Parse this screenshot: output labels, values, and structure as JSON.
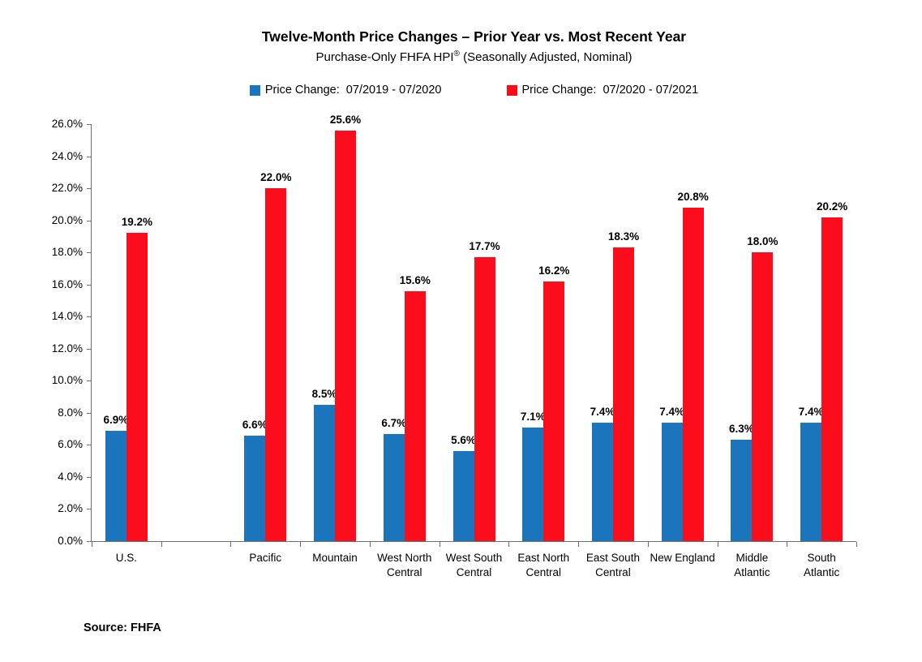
{
  "title": "Twelve-Month Price Changes – Prior Year vs. Most Recent Year",
  "subtitle": {
    "prefix": "Purchase-Only FHFA HPI",
    "registered": "®",
    "suffix": " (Seasonally Adjusted, Nominal)"
  },
  "legend": [
    {
      "label": "Price Change:  07/2019 - 07/2020",
      "color": "#1B75BC"
    },
    {
      "label": "Price Change:  07/2020 - 07/2021",
      "color": "#FB0D1C"
    }
  ],
  "source": "Source: FHFA",
  "chart_data": {
    "type": "bar",
    "categories": [
      "U.S.",
      "Pacific",
      "Mountain",
      "West North\nCentral",
      "West South\nCentral",
      "East North\nCentral",
      "East South\nCentral",
      "New England",
      "Middle\nAtlantic",
      "South\nAtlantic"
    ],
    "series": [
      {
        "name": "Price Change:  07/2019 - 07/2020",
        "color": "#1B75BC",
        "values": [
          6.9,
          6.6,
          8.5,
          6.7,
          5.6,
          7.1,
          7.4,
          7.4,
          6.3,
          7.4
        ]
      },
      {
        "name": "Price Change:  07/2020 - 07/2021",
        "color": "#FB0D1C",
        "values": [
          19.2,
          22.0,
          25.6,
          15.6,
          17.7,
          16.2,
          18.3,
          20.8,
          18.0,
          20.2
        ]
      }
    ],
    "title": "Twelve-Month Price Changes – Prior Year vs. Most Recent Year",
    "xlabel": "",
    "ylabel": "",
    "ylim": [
      0,
      26
    ],
    "ytick_step": 2,
    "ytick_format": "percent_one_decimal",
    "grid": false,
    "legend_position": "top",
    "value_labels": true,
    "gap_after_category": "U.S."
  }
}
